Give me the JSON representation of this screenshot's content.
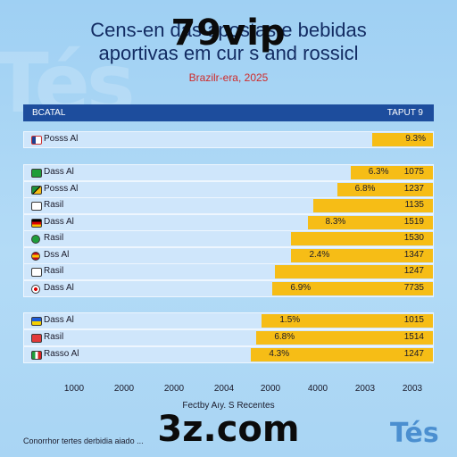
{
  "title_line1": "Cens-en  das apostas e bebidas",
  "title_line2": "aportivas  em cur s  and rossicl",
  "subtitle": "Brazilr-era, 2025",
  "watermark_top": "79vip",
  "watermark_bottom": "3z.com",
  "background_logo": "Tés",
  "corner_logo": "Tés",
  "source": "Fectby Aıy. S Recentes",
  "footer_note": "Conorrhor tertes derbidia aiado  ...",
  "header": {
    "left": "BCATAL",
    "right": "TAPUT 9"
  },
  "colors": {
    "bar": "#f6bd16",
    "header": "#1d4d9d",
    "title": "#132c63",
    "subtitle": "#cf2b2b"
  },
  "chart_data": {
    "type": "bar",
    "orientation": "horizontal",
    "categories": [
      "Posss Al",
      "Dass Al",
      "Posss Al",
      "Rasil",
      "Dass Al",
      "Rasil",
      "Dss Al",
      "Rasil",
      "Dass Al",
      "Dass Al",
      "Rasil",
      "Rasso Al"
    ],
    "values": [
      78,
      70,
      65,
      56,
      54,
      48,
      48,
      42,
      41,
      37,
      35,
      33
    ],
    "bar_labels": [
      "9.3%",
      "6.3%",
      "6.8%",
      "",
      "8.3%",
      "",
      "2.4%",
      "",
      "6.9%",
      "1.5%",
      "6.8%",
      "4.3%"
    ],
    "right_values": [
      "",
      "1075",
      "1237",
      "1135",
      "1519",
      "1530",
      "1347",
      "1247",
      "7735",
      "1015",
      "1514",
      "1247"
    ],
    "flags": [
      "us-flag",
      "green-flag",
      "jamaica-flag",
      "plain-flag",
      "germany-flag",
      "brazil-flag",
      "spain-flag",
      "plain-flag",
      "japan-flag",
      "ukraine-flag",
      "red-flag",
      "italy-flag"
    ],
    "x_tick_labels": [
      "1000",
      "2000",
      "2000",
      "2004",
      "2000",
      "4000",
      "2003",
      "2003"
    ],
    "xlim": [
      0,
      100
    ],
    "title": "Cens-en  das apostas e bebidas aportivas  em cur s  and rossicl"
  }
}
